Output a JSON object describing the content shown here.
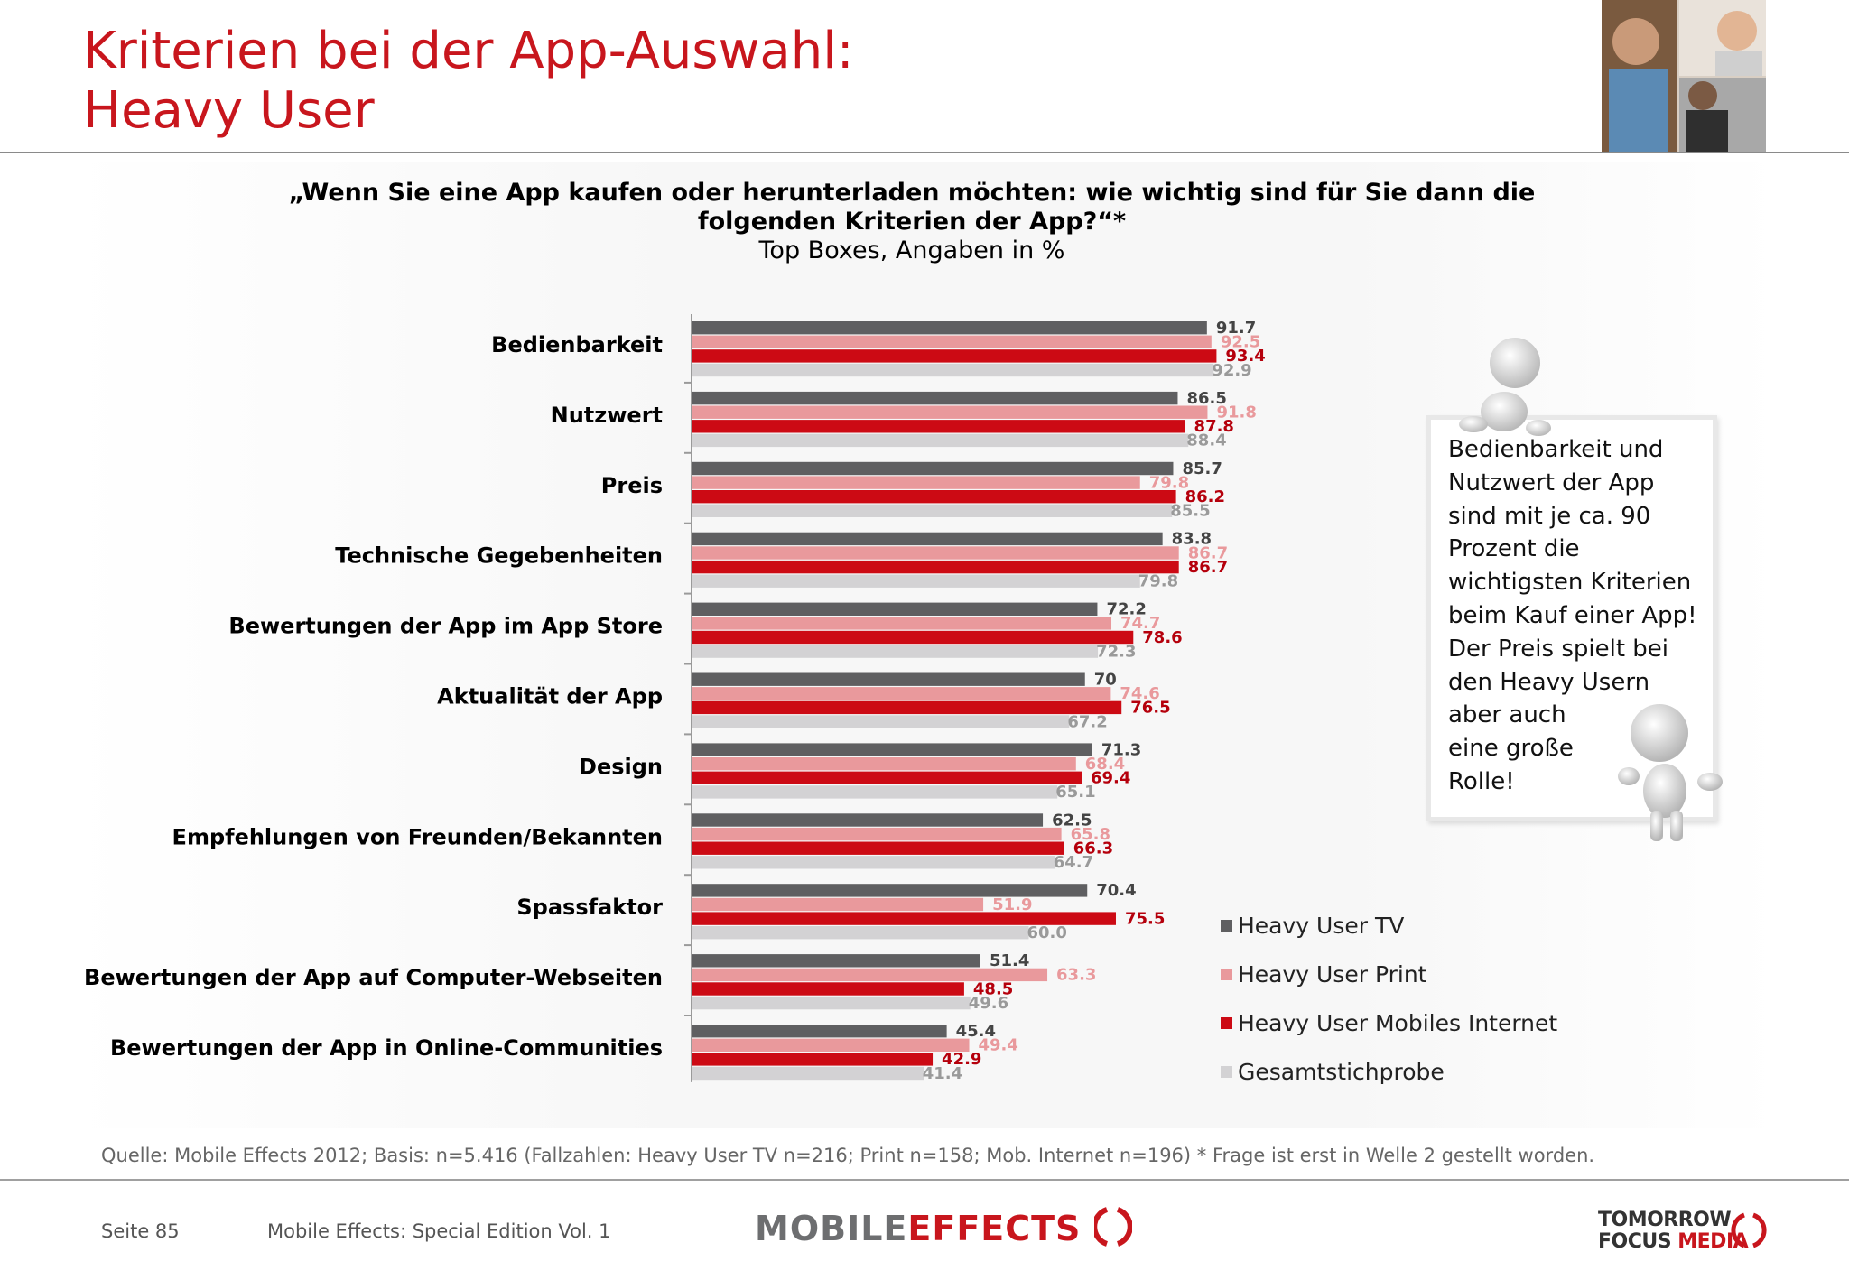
{
  "title": {
    "line1": "Kriterien bei der App-Auswahl:",
    "line2": "Heavy User"
  },
  "question": {
    "line1": "„Wenn Sie eine App kaufen oder herunterladen möchten: wie wichtig sind für Sie dann die",
    "line2": "folgenden Kriterien der App?“*",
    "subtitle": "Top Boxes, Angaben in %"
  },
  "chart_data": {
    "type": "bar",
    "orientation": "horizontal",
    "categories": [
      "Bedienbarkeit",
      "Nutzwert",
      "Preis",
      "Technische Gegebenheiten",
      "Bewertungen der App im App Store",
      "Aktualität der App",
      "Design",
      "Empfehlungen von Freunden/Bekannten",
      "Spassfaktor",
      "Bewertungen der App auf Computer-Webseiten",
      "Bewertungen der App in Online-Communities"
    ],
    "series": [
      {
        "name": "Heavy User TV",
        "color": "#5f5f61",
        "labelColor": "#444444",
        "values": [
          91.7,
          86.5,
          85.7,
          83.8,
          72.2,
          70,
          71.3,
          62.5,
          70.4,
          51.4,
          45.4
        ],
        "labels": [
          "91.7",
          "86.5",
          "85.7",
          "83.8",
          "72.2",
          "70",
          "71.3",
          "62.5",
          "70.4",
          "51.4",
          "45.4"
        ]
      },
      {
        "name": "Heavy User Print",
        "color": "#e9999c",
        "labelColor": "#e9999c",
        "values": [
          92.5,
          91.8,
          79.8,
          86.7,
          74.7,
          74.6,
          68.4,
          65.8,
          51.9,
          63.3,
          49.4
        ],
        "labels": [
          "92.5",
          "91.8",
          "79.8",
          "86.7",
          "74.7",
          "74.6",
          "68.4",
          "65.8",
          "51.9",
          "63.3",
          "49.4"
        ]
      },
      {
        "name": "Heavy User Mobiles Internet",
        "color": "#cc0a14",
        "labelColor": "#b5000c",
        "values": [
          93.4,
          87.8,
          86.2,
          86.7,
          78.6,
          76.5,
          69.4,
          66.3,
          75.5,
          48.5,
          42.9
        ],
        "labels": [
          "93.4",
          "87.8",
          "86.2",
          "86.7",
          "78.6",
          "76.5",
          "69.4",
          "66.3",
          "75.5",
          "48.5",
          "42.9"
        ]
      },
      {
        "name": "Gesamtstichprobe",
        "color": "#d3d2d4",
        "labelColor": "#9a9a9a",
        "values": [
          92.9,
          88.4,
          85.5,
          79.8,
          72.3,
          67.2,
          65.1,
          64.7,
          60.0,
          49.6,
          41.4
        ],
        "labels": [
          "92.9",
          "88.4",
          "85.5",
          "79.8",
          "72.3",
          "67.2",
          "65.1",
          "64.7",
          "60.0",
          "49.6",
          "41.4"
        ]
      }
    ],
    "xlim": [
      0,
      100
    ],
    "grid": false,
    "legend": "right"
  },
  "callout": {
    "lines": [
      "Bedienbarkeit und",
      "Nutzwert der App",
      "sind mit je ca. 90",
      "Prozent die",
      "wichtigsten Kriterien",
      "beim Kauf einer App!",
      "Der Preis spielt bei",
      "den Heavy Usern",
      "aber auch",
      "eine große",
      "Rolle!"
    ]
  },
  "source": "Quelle: Mobile Effects 2012; Basis: n=5.416 (Fallzahlen: Heavy User TV n=216; Print n=158; Mob. Internet n=196) * Frage ist erst in Welle 2 gestellt worden.",
  "footer": {
    "page": "Seite 85",
    "edition": "Mobile Effects: Special Edition Vol. 1",
    "logo_mobile": "MOBILE",
    "logo_effects": "EFFECTS",
    "logo_tfm_line1": "TOMORROW",
    "logo_tfm_line2a": "FOCUS",
    "logo_tfm_line2b": "MEDIA"
  }
}
